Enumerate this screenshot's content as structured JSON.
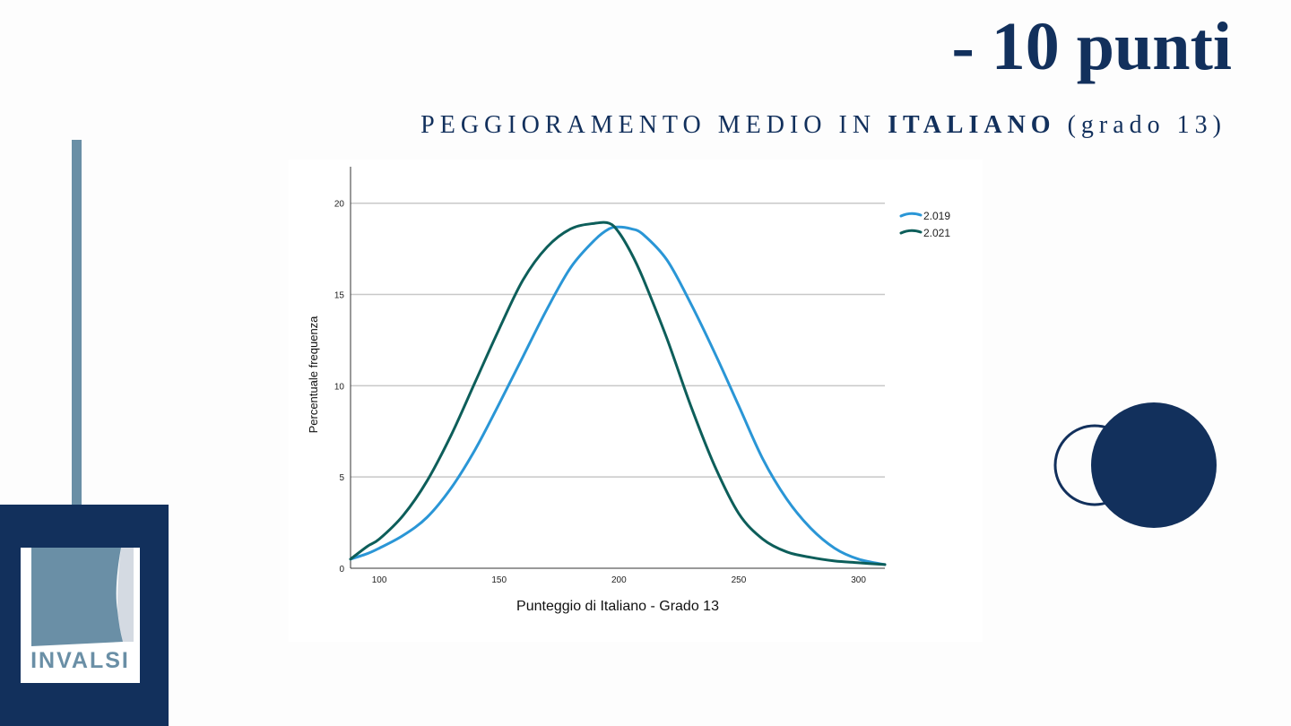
{
  "headline": "- 10 punti",
  "subtitle": {
    "pre": "PEGGIORAMENTO MEDIO IN ",
    "subject": "ITALIANO",
    "post": " (grado 13)"
  },
  "logo": {
    "text": "INVALSI"
  },
  "colors": {
    "navy": "#12305c",
    "steel": "#6a8fa6",
    "series_2019": "#2a96d6",
    "series_2021": "#0d5e5a"
  },
  "chart_data": {
    "type": "line",
    "title": "",
    "xlabel": "Punteggio di Italiano - Grado 13",
    "ylabel": "Percentuale frequenza",
    "xlim": [
      88,
      311
    ],
    "ylim": [
      0,
      22
    ],
    "x_ticks": [
      100,
      150,
      200,
      250,
      300
    ],
    "y_ticks": [
      0,
      5,
      10,
      15,
      20
    ],
    "grid": "horizontal",
    "legend_position": "top-right",
    "x": [
      88,
      95,
      100,
      110,
      120,
      130,
      140,
      150,
      160,
      170,
      180,
      190,
      196,
      200,
      205,
      210,
      220,
      230,
      240,
      250,
      260,
      270,
      280,
      290,
      300,
      311
    ],
    "series": [
      {
        "name": "2.019",
        "color": "#2a96d6",
        "values": [
          0.5,
          0.8,
          1.1,
          1.8,
          2.8,
          4.4,
          6.5,
          9.0,
          11.6,
          14.2,
          16.5,
          18.0,
          18.6,
          18.7,
          18.6,
          18.3,
          16.9,
          14.5,
          11.8,
          8.9,
          6.0,
          3.8,
          2.2,
          1.1,
          0.5,
          0.2
        ]
      },
      {
        "name": "2.021",
        "color": "#0d5e5a",
        "values": [
          0.5,
          1.2,
          1.6,
          2.9,
          4.8,
          7.3,
          10.2,
          13.1,
          15.8,
          17.6,
          18.6,
          18.9,
          18.9,
          18.4,
          17.3,
          15.9,
          12.6,
          8.9,
          5.6,
          3.0,
          1.6,
          0.9,
          0.6,
          0.4,
          0.3,
          0.2
        ]
      }
    ]
  }
}
